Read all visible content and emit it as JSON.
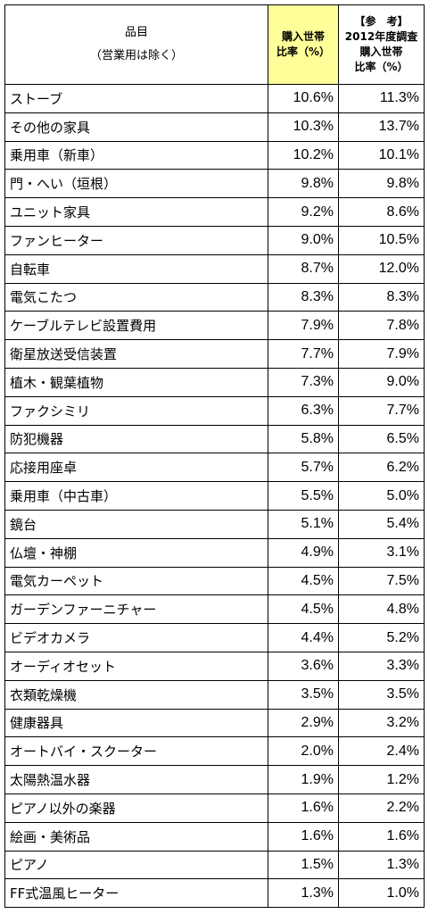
{
  "table": {
    "header": [
      [
        "品目",
        "（営業用は除く）"
      ],
      [
        "購入世帯",
        "比率（%）"
      ],
      [
        "【参　考】",
        "2012年度調査",
        "購入世帯",
        "比率（%）"
      ]
    ],
    "rows": [
      [
        "ストーブ",
        "10.6%",
        "11.3%"
      ],
      [
        "その他の家具",
        "10.3%",
        "13.7%"
      ],
      [
        "乗用車（新車）",
        "10.2%",
        "10.1%"
      ],
      [
        "門・へい（垣根）",
        "9.8%",
        "9.8%"
      ],
      [
        "ユニット家具",
        "9.2%",
        "8.6%"
      ],
      [
        "ファンヒーター",
        "9.0%",
        "10.5%"
      ],
      [
        "自転車",
        "8.7%",
        "12.0%"
      ],
      [
        "電気こたつ",
        "8.3%",
        "8.3%"
      ],
      [
        "ケーブルテレビ設置費用",
        "7.9%",
        "7.8%"
      ],
      [
        "衛星放送受信装置",
        "7.7%",
        "7.9%"
      ],
      [
        "植木・観葉植物",
        "7.3%",
        "9.0%"
      ],
      [
        "ファクシミリ",
        "6.3%",
        "7.7%"
      ],
      [
        "防犯機器",
        "5.8%",
        "6.5%"
      ],
      [
        "応接用座卓",
        "5.7%",
        "6.2%"
      ],
      [
        "乗用車（中古車）",
        "5.5%",
        "5.0%"
      ],
      [
        "鏡台",
        "5.1%",
        "5.4%"
      ],
      [
        "仏壇・神棚",
        "4.9%",
        "3.1%"
      ],
      [
        "電気カーペット",
        "4.5%",
        "7.5%"
      ],
      [
        "ガーデンファーニチャー",
        "4.5%",
        "4.8%"
      ],
      [
        "ビデオカメラ",
        "4.4%",
        "5.2%"
      ],
      [
        "オーディオセット",
        "3.6%",
        "3.3%"
      ],
      [
        "衣類乾燥機",
        "3.5%",
        "3.5%"
      ],
      [
        "健康器具",
        "2.9%",
        "3.2%"
      ],
      [
        "オートバイ・スクーター",
        "2.0%",
        "2.4%"
      ],
      [
        "太陽熱温水器",
        "1.9%",
        "1.2%"
      ],
      [
        "ピアノ以外の楽器",
        "1.6%",
        "2.2%"
      ],
      [
        "絵画・美術品",
        "1.6%",
        "1.6%"
      ],
      [
        "ピアノ",
        "1.5%",
        "1.3%"
      ],
      [
        "FF式温風ヒーター",
        "1.3%",
        "1.0%"
      ]
    ]
  }
}
